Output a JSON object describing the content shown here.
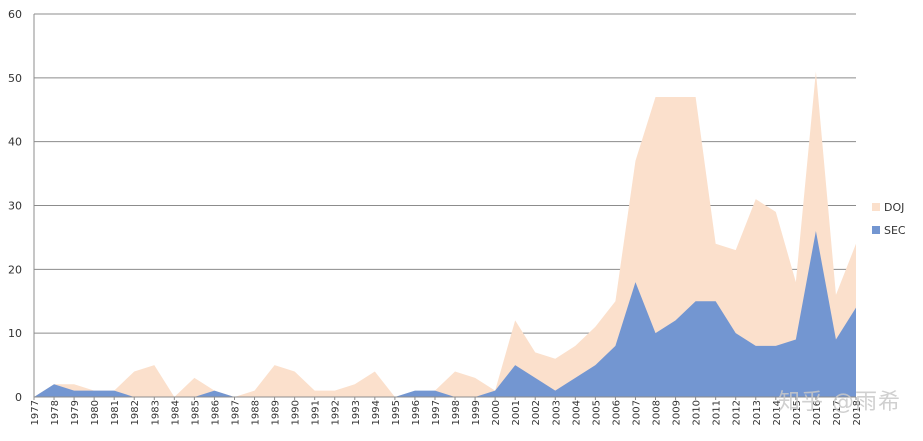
{
  "chart_data": {
    "type": "area",
    "stacked": false,
    "categories": [
      "1977",
      "1978",
      "1979",
      "1980",
      "1981",
      "1982",
      "1983",
      "1984",
      "1985",
      "1986",
      "1987",
      "1988",
      "1989",
      "1990",
      "1991",
      "1992",
      "1993",
      "1994",
      "1995",
      "1996",
      "1997",
      "1998",
      "1999",
      "2000",
      "2001",
      "2002",
      "2003",
      "2004",
      "2005",
      "2006",
      "2007",
      "2008",
      "2009",
      "2010",
      "2011",
      "2012",
      "2013",
      "2014",
      "2015",
      "2016",
      "2017",
      "2018"
    ],
    "series": [
      {
        "name": "DOJ",
        "color": "#fbe0cc",
        "values": [
          0,
          2,
          2,
          1,
          1,
          4,
          5,
          0,
          3,
          1,
          0,
          1,
          5,
          4,
          1,
          1,
          2,
          4,
          0,
          0,
          1,
          4,
          3,
          1,
          12,
          7,
          6,
          8,
          11,
          15,
          37,
          47,
          47,
          47,
          24,
          23,
          31,
          29,
          18,
          51,
          16,
          24
        ]
      },
      {
        "name": "SEC",
        "color": "#7396d1",
        "values": [
          0,
          2,
          1,
          1,
          1,
          0,
          0,
          0,
          0,
          1,
          0,
          0,
          0,
          0,
          0,
          0,
          0,
          0,
          0,
          1,
          1,
          0,
          0,
          1,
          5,
          3,
          1,
          3,
          5,
          8,
          18,
          10,
          12,
          15,
          15,
          10,
          8,
          8,
          9,
          26,
          9,
          14
        ]
      }
    ],
    "ylim": [
      0,
      60
    ],
    "yticks": [
      0,
      10,
      20,
      30,
      40,
      50,
      60
    ],
    "grid": true,
    "legend": "right",
    "title": "",
    "xlabel": "",
    "ylabel": ""
  },
  "watermark": "知乎 @雨希"
}
